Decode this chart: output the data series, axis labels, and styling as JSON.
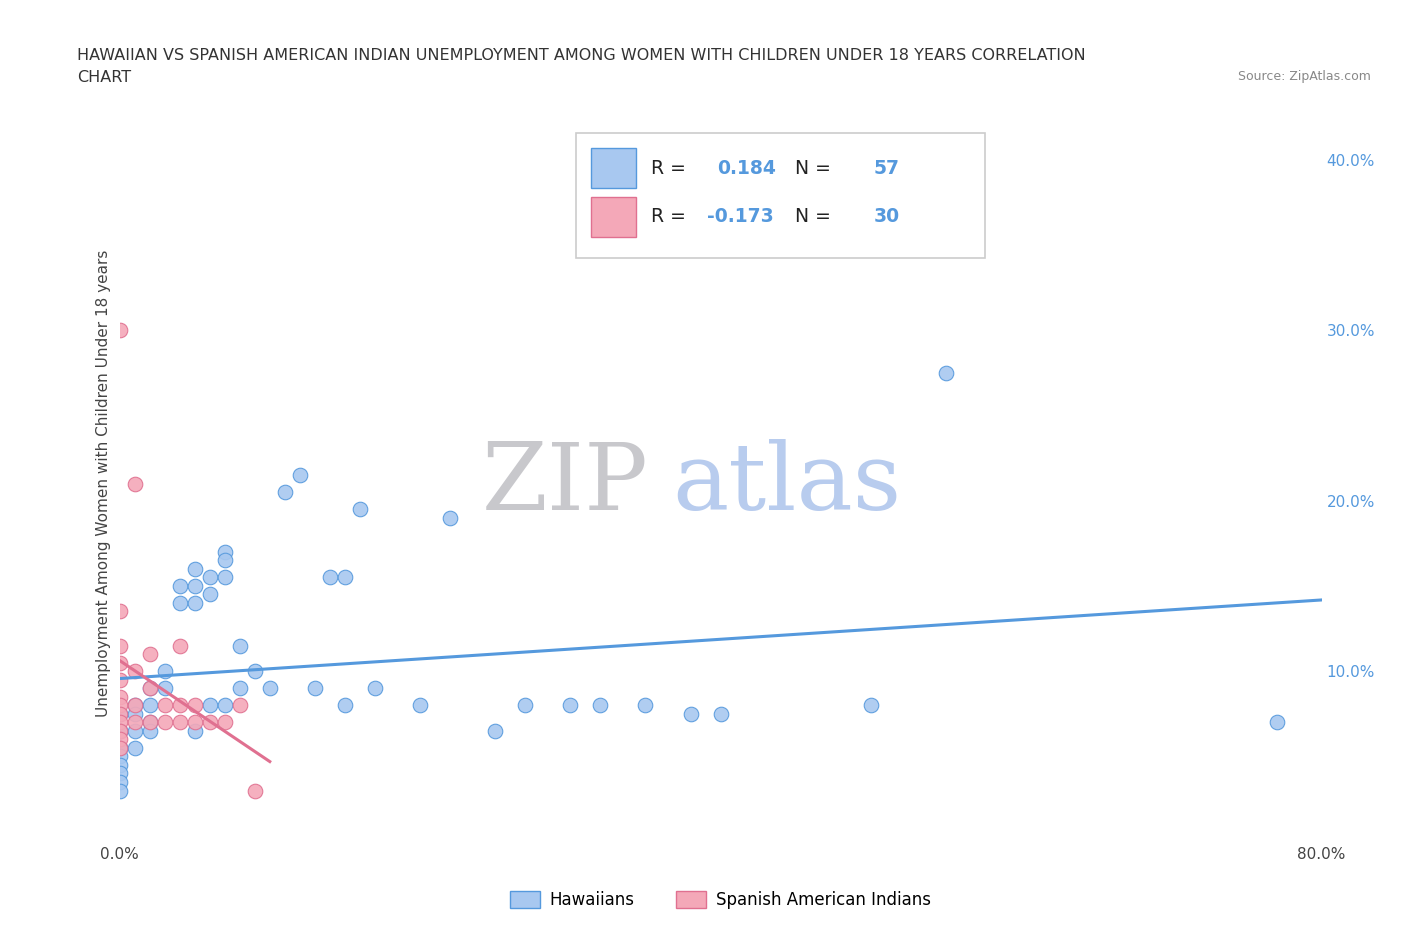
{
  "title_line1": "HAWAIIAN VS SPANISH AMERICAN INDIAN UNEMPLOYMENT AMONG WOMEN WITH CHILDREN UNDER 18 YEARS CORRELATION",
  "title_line2": "CHART",
  "source": "Source: ZipAtlas.com",
  "ylabel": "Unemployment Among Women with Children Under 18 years",
  "xlim": [
    0.0,
    0.8
  ],
  "ylim": [
    0.0,
    0.42
  ],
  "hawaiian_R": 0.184,
  "hawaiian_N": 57,
  "spanish_R": -0.173,
  "spanish_N": 30,
  "hawaiian_color": "#a8c8f0",
  "spanish_color": "#f4a8b8",
  "hawaiian_line_color": "#5599dd",
  "spanish_line_color": "#e07090",
  "background_color": "#ffffff",
  "grid_color": "#cccccc",
  "watermark_zip": "ZIP",
  "watermark_atlas": "atlas",
  "watermark_zip_color": "#c8c8cc",
  "watermark_atlas_color": "#b8ccee",
  "hawaiian_x": [
    0.0,
    0.0,
    0.0,
    0.0,
    0.0,
    0.0,
    0.0,
    0.0,
    0.0,
    0.0,
    0.01,
    0.01,
    0.01,
    0.01,
    0.02,
    0.02,
    0.02,
    0.02,
    0.03,
    0.03,
    0.04,
    0.04,
    0.05,
    0.05,
    0.05,
    0.05,
    0.06,
    0.06,
    0.06,
    0.07,
    0.07,
    0.07,
    0.07,
    0.08,
    0.08,
    0.09,
    0.1,
    0.11,
    0.12,
    0.13,
    0.14,
    0.15,
    0.15,
    0.16,
    0.17,
    0.2,
    0.22,
    0.25,
    0.27,
    0.3,
    0.32,
    0.35,
    0.38,
    0.4,
    0.5,
    0.55,
    0.77
  ],
  "hawaiian_y": [
    0.075,
    0.065,
    0.065,
    0.055,
    0.055,
    0.05,
    0.045,
    0.04,
    0.035,
    0.03,
    0.08,
    0.075,
    0.065,
    0.055,
    0.09,
    0.08,
    0.07,
    0.065,
    0.1,
    0.09,
    0.15,
    0.14,
    0.16,
    0.15,
    0.14,
    0.065,
    0.155,
    0.145,
    0.08,
    0.17,
    0.165,
    0.155,
    0.08,
    0.115,
    0.09,
    0.1,
    0.09,
    0.205,
    0.215,
    0.09,
    0.155,
    0.155,
    0.08,
    0.195,
    0.09,
    0.08,
    0.19,
    0.065,
    0.08,
    0.08,
    0.08,
    0.08,
    0.075,
    0.075,
    0.08,
    0.275,
    0.07
  ],
  "spanish_x": [
    0.0,
    0.0,
    0.0,
    0.0,
    0.0,
    0.0,
    0.0,
    0.0,
    0.0,
    0.0,
    0.0,
    0.0,
    0.01,
    0.01,
    0.01,
    0.01,
    0.02,
    0.02,
    0.02,
    0.03,
    0.03,
    0.04,
    0.04,
    0.04,
    0.05,
    0.05,
    0.06,
    0.07,
    0.08,
    0.09
  ],
  "spanish_y": [
    0.3,
    0.135,
    0.115,
    0.105,
    0.095,
    0.085,
    0.08,
    0.075,
    0.07,
    0.065,
    0.06,
    0.055,
    0.21,
    0.1,
    0.08,
    0.07,
    0.11,
    0.09,
    0.07,
    0.08,
    0.07,
    0.115,
    0.08,
    0.07,
    0.08,
    0.07,
    0.07,
    0.07,
    0.08,
    0.03
  ]
}
